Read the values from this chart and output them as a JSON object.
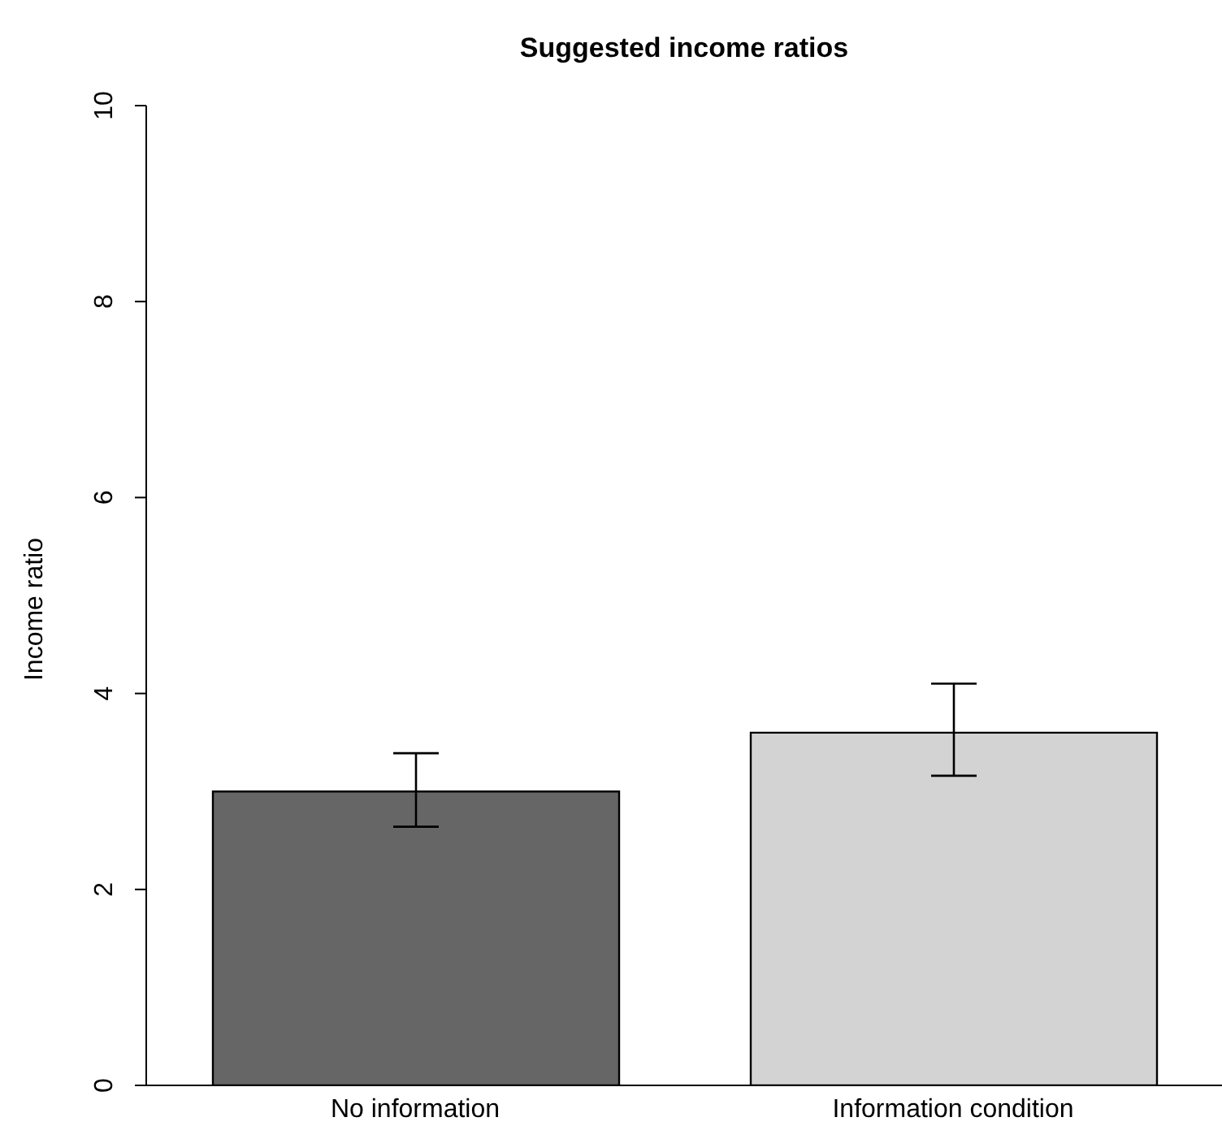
{
  "chart_data": {
    "type": "bar",
    "title": "Suggested income ratios",
    "ylabel": "Income ratio",
    "categories": [
      "No information",
      "Information condition"
    ],
    "values": [
      3.0,
      3.6
    ],
    "colors": [
      "#666666",
      "#d3d3d3"
    ],
    "errors": [
      [
        2.64,
        3.39
      ],
      [
        3.16,
        4.1
      ]
    ],
    "ylim": [
      0,
      10
    ],
    "yticks": [
      0,
      2,
      4,
      6,
      8,
      10
    ],
    "grid": false,
    "legend": false
  }
}
